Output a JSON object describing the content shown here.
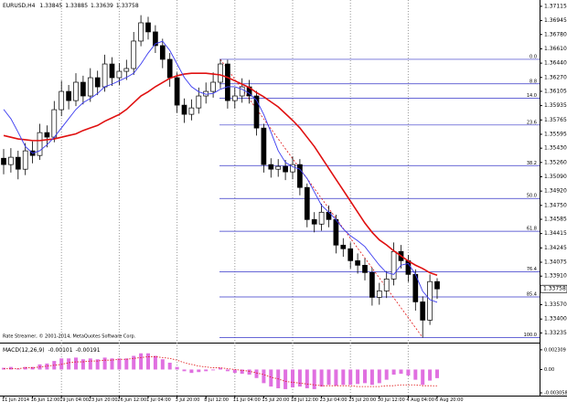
{
  "chart_data": [
    {
      "type": "candlestick",
      "title": "EURUSD,H4",
      "annotation": "Rate Streamer, © 2001-2014, MetaQuotes Software Corp.",
      "categories": [
        "11 Jun 2014",
        null,
        null,
        null,
        "16 Jun 12:00",
        null,
        null,
        null,
        "19 Jun 04:00",
        null,
        null,
        null,
        "23 Jun 20:00",
        null,
        null,
        null,
        "26 Jun 12:00",
        null,
        null,
        null,
        "1 Jul 04:00",
        null,
        null,
        null,
        "3 Jul 20:00",
        null,
        null,
        null,
        "8 Jul 12:00",
        null,
        null,
        null,
        "11 Jul 04:00",
        null,
        null,
        null,
        "15 Jul 20:00",
        null,
        null,
        null,
        "18 Jul 12:00",
        null,
        null,
        null,
        "23 Jul 04:00",
        null,
        null,
        null,
        "25 Jul 20:00",
        null,
        null,
        null,
        "30 Jul 12:00",
        null,
        null,
        null,
        "4 Aug 04:00",
        null,
        null,
        null,
        "6 Aug 20:00"
      ],
      "open": [
        1.3531,
        1.35235,
        1.35322,
        1.3518,
        1.35398,
        1.35343,
        1.35615,
        1.35561,
        1.35887,
        1.36104,
        1.35995,
        1.36213,
        1.3605,
        1.36267,
        1.36158,
        1.3643,
        1.36267,
        1.36343,
        1.36376,
        1.36702,
        1.36919,
        1.36811,
        1.36648,
        1.36485,
        1.36267,
        1.35941,
        1.35832,
        1.35908,
        1.3605,
        1.36104,
        1.36213,
        1.3643,
        1.35995,
        1.3605,
        1.36158,
        1.3605,
        1.35669,
        1.35235,
        1.3518,
        1.35213,
        1.35148,
        1.35235,
        1.34963,
        1.34582,
        1.34528,
        1.34669,
        1.34582,
        1.34278,
        1.34235,
        1.34093,
        1.34039,
        1.33952,
        1.33658,
        1.33735,
        1.33876,
        1.34202,
        1.34093,
        1.3393,
        1.33604,
        1.33387,
        1.33845
      ],
      "high": [
        1.3542,
        1.3543,
        1.354,
        1.3549,
        1.3551,
        1.3572,
        1.357,
        1.3599,
        1.3623,
        1.3618,
        1.3632,
        1.3629,
        1.3638,
        1.3635,
        1.3654,
        1.3651,
        1.3644,
        1.3648,
        1.3681,
        1.3701,
        1.3699,
        1.3689,
        1.3673,
        1.3656,
        1.3633,
        1.3602,
        1.3601,
        1.3615,
        1.3621,
        1.3633,
        1.36485,
        1.3648,
        1.3615,
        1.3626,
        1.3624,
        1.3611,
        1.3572,
        1.3531,
        1.353,
        1.3529,
        1.3533,
        1.353,
        1.3501,
        1.3467,
        1.3477,
        1.3475,
        1.3464,
        1.3436,
        1.3431,
        1.3418,
        1.3412,
        1.3401,
        1.3383,
        1.3397,
        1.3431,
        1.3428,
        1.3416,
        1.3399,
        1.3367,
        1.3393,
        1.33885
      ],
      "low": [
        1.3512,
        1.3514,
        1.3506,
        1.3511,
        1.3525,
        1.3529,
        1.3544,
        1.355,
        1.3581,
        1.3589,
        1.3593,
        1.3595,
        1.3598,
        1.3606,
        1.361,
        1.3617,
        1.3618,
        1.3624,
        1.363,
        1.3664,
        1.3672,
        1.3656,
        1.3638,
        1.3616,
        1.3585,
        1.3573,
        1.3576,
        1.3584,
        1.3596,
        1.3603,
        1.3614,
        1.359,
        1.359,
        1.3597,
        1.3596,
        1.3558,
        1.3514,
        1.3508,
        1.3509,
        1.3505,
        1.3506,
        1.3487,
        1.3449,
        1.3443,
        1.3445,
        1.3449,
        1.3418,
        1.3414,
        1.34,
        1.3394,
        1.3386,
        1.3356,
        1.3357,
        1.3365,
        1.338,
        1.34,
        1.3384,
        1.335,
        1.3318,
        1.3333,
        1.33639
      ],
      "close": [
        1.35235,
        1.35322,
        1.3518,
        1.35398,
        1.35343,
        1.35615,
        1.35561,
        1.35887,
        1.36104,
        1.35995,
        1.36213,
        1.3605,
        1.36267,
        1.36158,
        1.3643,
        1.36267,
        1.36343,
        1.36376,
        1.36702,
        1.36919,
        1.36811,
        1.36648,
        1.36485,
        1.36267,
        1.35941,
        1.35832,
        1.35908,
        1.3605,
        1.36104,
        1.36213,
        1.3643,
        1.35995,
        1.3605,
        1.36158,
        1.3605,
        1.35669,
        1.35235,
        1.3518,
        1.35213,
        1.35148,
        1.35235,
        1.34963,
        1.34582,
        1.34528,
        1.34669,
        1.34582,
        1.34278,
        1.34235,
        1.34093,
        1.34039,
        1.33952,
        1.33658,
        1.33735,
        1.33876,
        1.34202,
        1.34093,
        1.3393,
        1.33604,
        1.33387,
        1.33845,
        1.33758
      ],
      "bull_color": "#ffffff",
      "bear_color": "#000000",
      "lines": [
        {
          "color": "#e01010",
          "values": [
            1.3558,
            1.3556,
            1.3554,
            1.3553,
            1.3552,
            1.3552,
            1.3553,
            1.3554,
            1.3556,
            1.3558,
            1.356,
            1.3564,
            1.3567,
            1.357,
            1.3575,
            1.3579,
            1.3583,
            1.3589,
            1.3597,
            1.3605,
            1.361,
            1.3616,
            1.3621,
            1.3626,
            1.3629,
            1.3631,
            1.3632,
            1.3632,
            1.3632,
            1.3631,
            1.363,
            1.3627,
            1.3623,
            1.3619,
            1.3615,
            1.3609,
            1.3604,
            1.3598,
            1.3592,
            1.3584,
            1.3576,
            1.3567,
            1.3556,
            1.3545,
            1.3532,
            1.3519,
            1.3506,
            1.3493,
            1.348,
            1.3467,
            1.3454,
            1.3443,
            1.3434,
            1.3428,
            1.3421,
            1.3415,
            1.3409,
            1.3404,
            1.34,
            1.3395,
            1.3392
          ]
        },
        {
          "color": "#3a3af0",
          "values": [
            1.3589,
            1.3578,
            1.3562,
            1.3545,
            1.3537,
            1.354,
            1.3547,
            1.3556,
            1.3567,
            1.3578,
            1.3589,
            1.3597,
            1.3602,
            1.3608,
            1.3616,
            1.3619,
            1.3623,
            1.3627,
            1.3632,
            1.3643,
            1.3656,
            1.3667,
            1.367,
            1.3659,
            1.3643,
            1.3627,
            1.3616,
            1.361,
            1.3607,
            1.3608,
            1.3613,
            1.3616,
            1.3616,
            1.3613,
            1.3608,
            1.36,
            1.3583,
            1.3562,
            1.354,
            1.3526,
            1.3521,
            1.3518,
            1.3507,
            1.3491,
            1.3475,
            1.3467,
            1.3458,
            1.3447,
            1.3439,
            1.3433,
            1.3426,
            1.3415,
            1.3404,
            1.3395,
            1.3393,
            1.3404,
            1.3406,
            1.3393,
            1.3373,
            1.3363,
            1.336
          ]
        }
      ],
      "fibonacci": {
        "color": "#3434c8",
        "line_color": "#e01010",
        "high": 1.36485,
        "low": 1.3318,
        "levels": [
          {
            "value": 0,
            "label": "0.0"
          },
          8.8,
          {
            "value": 14,
            "label": "14.0"
          },
          23.6,
          38.2,
          {
            "value": 50,
            "label": "50.0"
          },
          61.8,
          76.4,
          85.4,
          {
            "value": 100,
            "label": "100.0"
          }
        ]
      },
      "ylim": [
        1.3312,
        1.3719
      ],
      "yticks": [
        1.37115,
        1.36945,
        {
          "value": 1.3678,
          "label": "1.36780"
        },
        {
          "value": 1.3661,
          "label": "1.36610"
        },
        {
          "value": 1.3644,
          "label": "1.36440"
        },
        {
          "value": 1.3627,
          "label": "1.36270"
        },
        1.36105,
        1.35935,
        1.35765,
        1.35595,
        {
          "value": 1.3543,
          "label": "1.35430"
        },
        {
          "value": 1.3526,
          "label": "1.35260"
        },
        {
          "value": 1.3509,
          "label": "1.35090"
        },
        {
          "value": 1.3492,
          "label": "1.34920"
        },
        {
          "value": 1.3475,
          "label": "1.34750"
        },
        1.34585,
        1.34415,
        1.34245,
        1.34075,
        {
          "value": 1.3391,
          "label": "1.33910"
        },
        {
          "value": 1.3357,
          "label": "1.33570"
        },
        {
          "value": 1.334,
          "label": "1.33400"
        },
        1.33235
      ],
      "grid": true
    },
    {
      "type": "macd",
      "title": "MACD(12,26,9)",
      "color": "#e070e0",
      "signal_color": "#e01010",
      "histogram": [
        0.0002,
        0.0003,
        0.0001,
        0.0003,
        0.0003,
        0.0006,
        0.0007,
        0.001,
        0.0013,
        0.0013,
        0.0014,
        0.0012,
        0.0013,
        0.0012,
        0.0014,
        0.0013,
        0.0013,
        0.0013,
        0.0016,
        0.0019,
        0.0019,
        0.0016,
        0.0012,
        0.0008,
        0.0003,
        -0.0002,
        -0.0004,
        -0.0003,
        -0.0002,
        -0.0001,
        0.0002,
        -0.0002,
        -0.0004,
        -0.0005,
        -0.0006,
        -0.001,
        -0.0016,
        -0.002,
        -0.0022,
        -0.0023,
        -0.0021,
        -0.002,
        -0.0022,
        -0.0023,
        -0.002,
        -0.0018,
        -0.0019,
        -0.0018,
        -0.0018,
        -0.0017,
        -0.0016,
        -0.0018,
        -0.0016,
        -0.0012,
        -0.0006,
        -0.0005,
        -0.0007,
        -0.0012,
        -0.0018,
        -0.0013,
        -0.00101
      ],
      "signal": [
        0.0001,
        0.0001,
        0.0001,
        0.0002,
        0.0002,
        0.0003,
        0.0004,
        0.0005,
        0.0006,
        0.0008,
        0.0009,
        0.0009,
        0.001,
        0.001,
        0.0011,
        0.0011,
        0.0012,
        0.0012,
        0.0013,
        0.0014,
        0.0015,
        0.0015,
        0.0014,
        0.0013,
        0.0011,
        0.0008,
        0.0006,
        0.0004,
        0.0003,
        0.0002,
        0.0002,
        0.0001,
        0,
        -0.0001,
        -0.0002,
        -0.0004,
        -0.0006,
        -0.0009,
        -0.0011,
        -0.0014,
        -0.0015,
        -0.0016,
        -0.0017,
        -0.0018,
        -0.0019,
        -0.0019,
        -0.0019,
        -0.0019,
        -0.0019,
        -0.002,
        -0.002,
        -0.002,
        -0.002,
        -0.0019,
        -0.0019,
        -0.0018,
        -0.0018,
        -0.0018,
        -0.0019,
        -0.0019,
        -0.00191
      ],
      "ylim": [
        -0.00306,
        0.00294
      ],
      "yticks": [
        0.002309,
        {
          "value": 0,
          "label": "0.00"
        },
        -0.003058
      ]
    }
  ]
}
